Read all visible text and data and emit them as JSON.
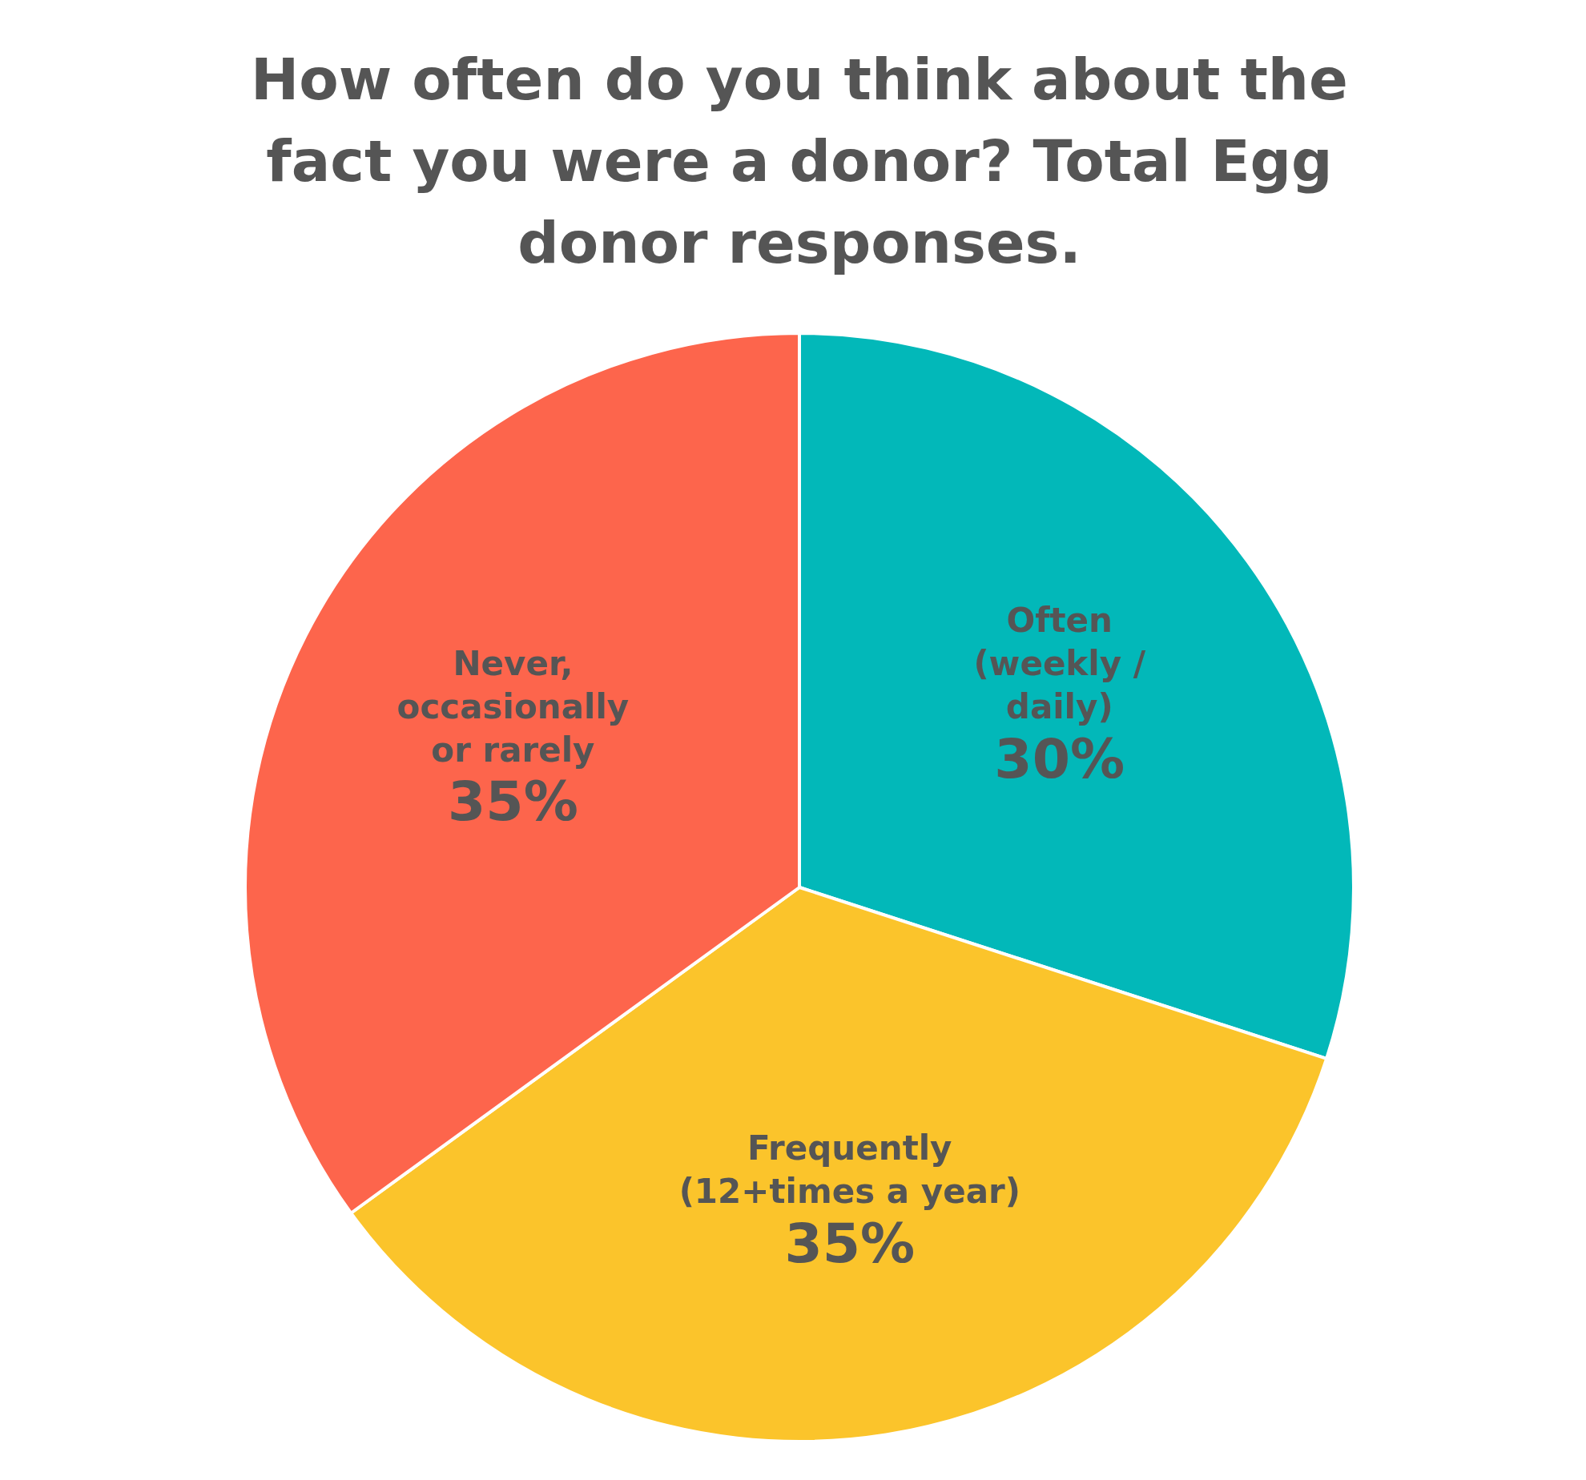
{
  "chart_data": {
    "type": "pie",
    "title": "How often do you think about the fact you were a donor?  Total Egg donor responses.",
    "categories": [
      "Often (weekly / daily)",
      "Frequently (12+times a year)",
      "Never, occasionally or rarely"
    ],
    "values": [
      30,
      35,
      35
    ],
    "colors": [
      "#02b8b9",
      "#fbc42b",
      "#fd654c"
    ],
    "value_labels": [
      "30%",
      "35%",
      "35%"
    ]
  }
}
